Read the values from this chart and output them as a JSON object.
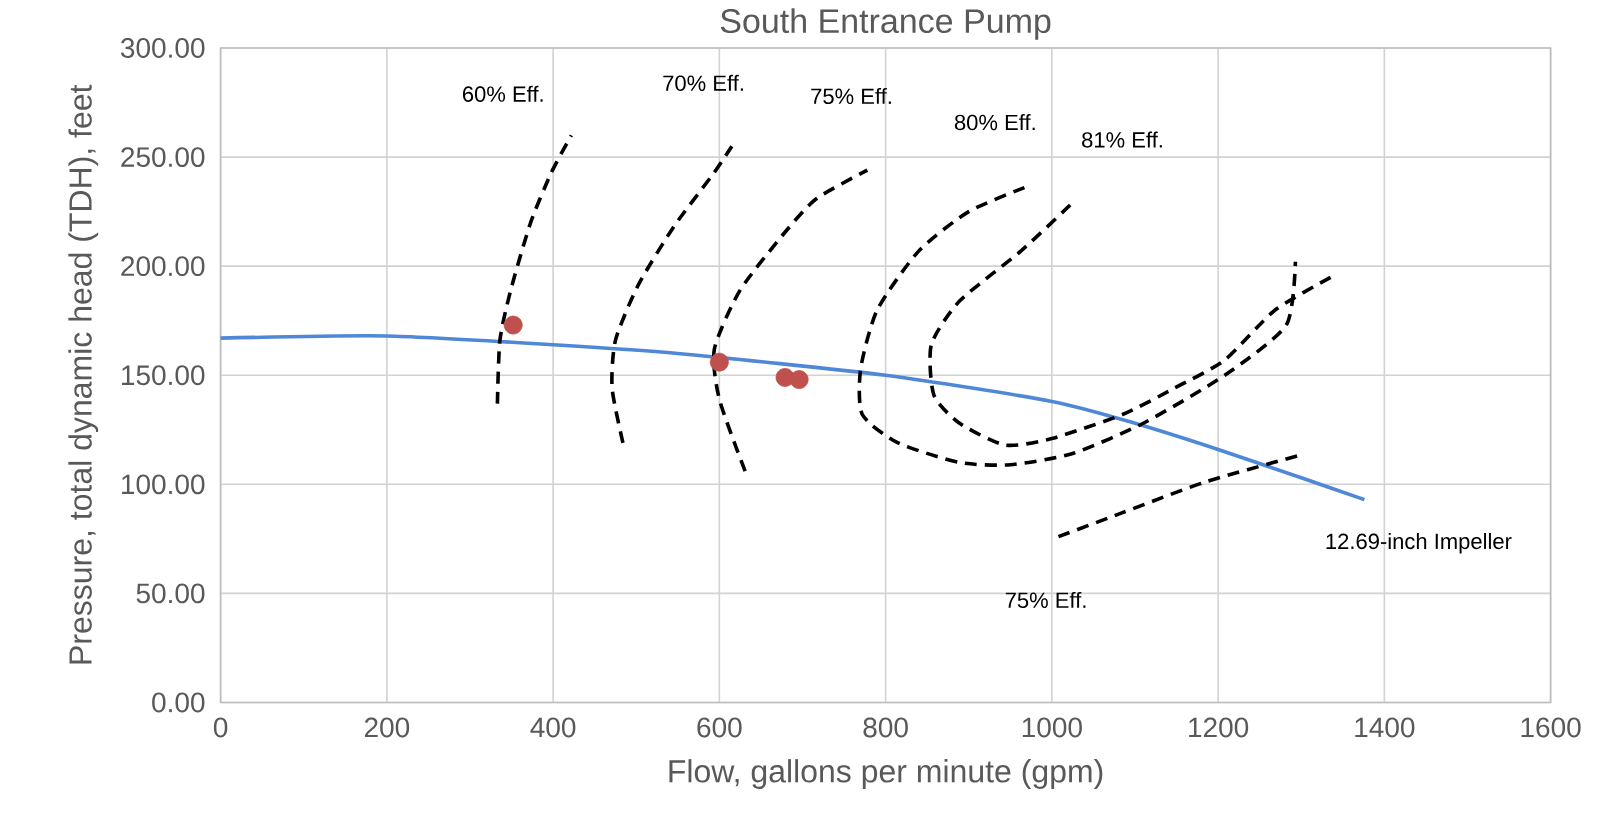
{
  "chart_data": {
    "type": "line",
    "title": "South Entrance Pump",
    "xlabel": "Flow, gallons per minute (gpm)",
    "ylabel": "Pressure, total dynamic head (TDH), feet",
    "xlim": [
      0,
      1600
    ],
    "ylim": [
      0,
      300
    ],
    "xticks": [
      0,
      200,
      400,
      600,
      800,
      1000,
      1200,
      1400,
      1600
    ],
    "yticks": [
      {
        "value": 0,
        "label": "0.00"
      },
      {
        "value": 50,
        "label": "50.00"
      },
      {
        "value": 100,
        "label": "100.00"
      },
      {
        "value": 150,
        "label": "150.00"
      },
      {
        "value": 200,
        "label": "200.00"
      },
      {
        "value": 250,
        "label": "250.00"
      },
      {
        "value": 300,
        "label": "300.00"
      }
    ],
    "grid": true,
    "series": [
      {
        "color": "#4f88d6",
        "line_style": "solid",
        "marker": "none",
        "x": [
          0,
          200,
          400,
          550,
          800,
          1000,
          1100,
          1200,
          1300,
          1376
        ],
        "values": [
          167,
          168,
          164,
          160,
          150,
          138,
          128,
          116,
          103,
          93
        ]
      },
      {
        "type": "line",
        "color": "#000000",
        "line_style": "dashed",
        "marker": "none",
        "x": [
          333,
          336,
          349,
          373,
          398,
          422
        ],
        "values": [
          137,
          166,
          189,
          220,
          243,
          260
        ]
      },
      {
        "type": "line",
        "color": "#000000",
        "line_style": "dashed",
        "marker": "none",
        "x": [
          484,
          471,
          475,
          502,
          545,
          594,
          615
        ],
        "values": [
          119,
          144,
          166,
          191,
          218,
          243,
          255
        ]
      },
      {
        "type": "line",
        "color": "#000000",
        "line_style": "dashed",
        "marker": "none",
        "x": [
          631,
          600,
          594,
          625,
          680,
          717,
          778
        ],
        "values": [
          106,
          139,
          162,
          189,
          216,
          231,
          244
        ]
      },
      {
        "type": "line",
        "color": "#000000",
        "line_style": "dashed",
        "marker": "none",
        "x": [
          967,
          900,
          840,
          790,
          770,
          772,
          815,
          889,
          950,
          1024,
          1110,
          1208,
          1282,
          1293
        ],
        "values": [
          236,
          225,
          207,
          180,
          153,
          132,
          119,
          110,
          109,
          114,
          128,
          150,
          173,
          202
        ]
      },
      {
        "type": "line",
        "color": "#000000",
        "line_style": "dashed",
        "marker": "none",
        "x": [
          1022,
          963,
          889,
          855,
          858,
          889,
          944,
          1000,
          1085,
          1147,
          1208,
          1269,
          1341
        ],
        "values": [
          228,
          207,
          184,
          164,
          141,
          128,
          118,
          121,
          132,
          144,
          157,
          180,
          196
        ]
      },
      {
        "type": "line",
        "color": "#000000",
        "line_style": "dashed",
        "marker": "none",
        "x": [
          1008,
          1085,
          1184,
          1295
        ],
        "values": [
          76,
          87,
          101,
          113
        ]
      },
      {
        "type": "scatter",
        "color": "#c0504d",
        "marker": "circle",
        "x": [
          352,
          600,
          679,
          696
        ],
        "values": [
          173,
          156,
          149,
          148
        ]
      }
    ],
    "annotations": [
      "60% Eff.",
      "70% Eff.",
      "75% Eff.",
      "80% Eff.",
      "81% Eff.",
      "12.69-inch Impeller",
      "75% Eff."
    ]
  }
}
